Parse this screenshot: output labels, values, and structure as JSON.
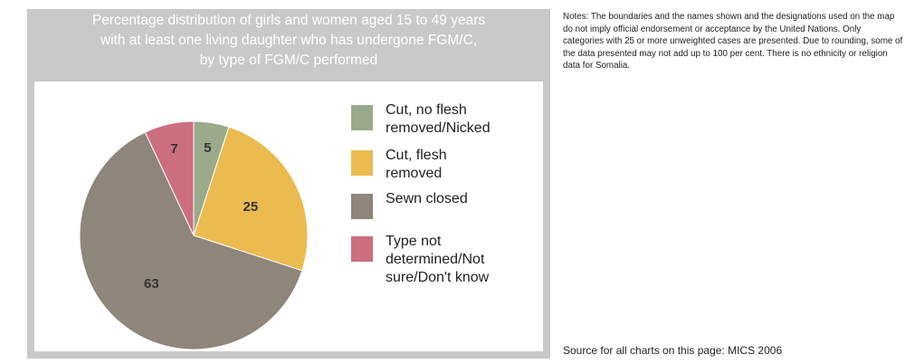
{
  "chart_data": {
    "type": "pie",
    "title_lines": [
      "Percentage distribution of girls and women aged 15 to 49 years",
      "with at least one living daughter who has undergone FGM/C,",
      "by type of FGM/C performed"
    ],
    "series": [
      {
        "name": "Cut, no flesh removed/Nicked",
        "label_lines": [
          "Cut, no flesh",
          "removed/Nicked"
        ],
        "value": 5,
        "color": "#9aab8c"
      },
      {
        "name": "Cut, flesh removed",
        "label_lines": [
          "Cut, flesh",
          "removed"
        ],
        "value": 25,
        "color": "#ebbb4f"
      },
      {
        "name": "Sewn closed",
        "label_lines": [
          "Sewn closed"
        ],
        "value": 63,
        "color": "#8e857b"
      },
      {
        "name": "Type not determined/Not sure/Don't know",
        "label_lines": [
          "Type not",
          "determined/Not",
          "sure/Don't know"
        ],
        "value": 7,
        "color": "#cc6e7e"
      }
    ],
    "start_angle_deg": 0,
    "direction": "clockwise",
    "legend_position": "right"
  },
  "notes": "Notes: The boundaries and the names shown and the designations used on the map do not imply official endorsement or acceptance by the United Nations. Only categories with 25 or more unweighted cases are presented. Due to rounding, some of the data presented may not add up to 100 per cent. There is no ethnicity or religion data for Somalia.",
  "source": "Source for all charts on this page: MICS 2006",
  "colors": {
    "frame": "#c9c9c9",
    "title_text": "#ffffff",
    "label_text": "#333333"
  }
}
